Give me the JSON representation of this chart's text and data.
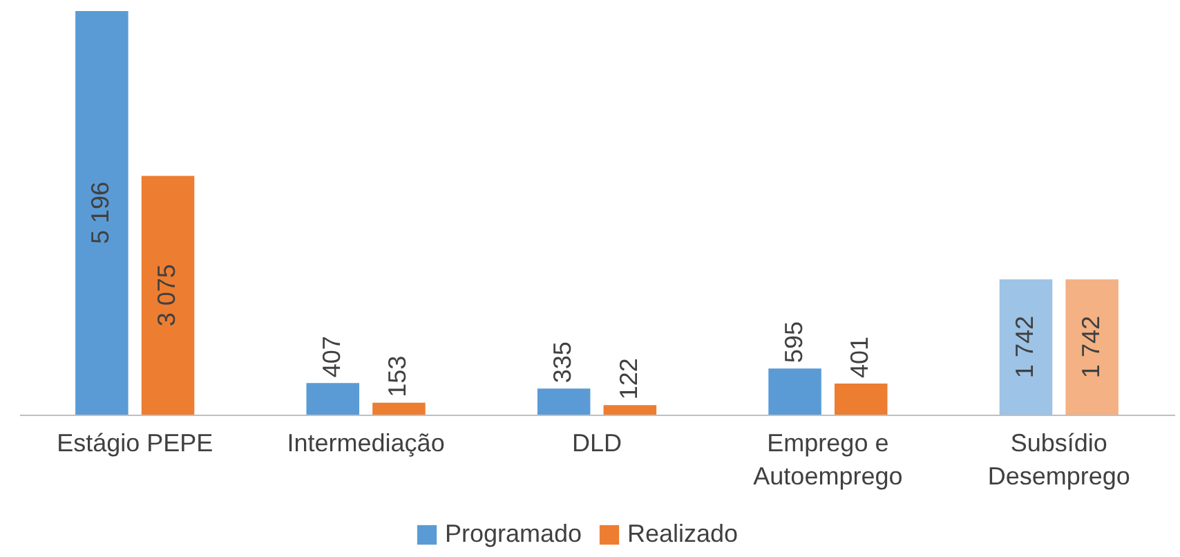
{
  "chart_data": {
    "type": "bar",
    "categories": [
      "Estágio PEPE",
      "Intermediação",
      "DLD",
      "Emprego e Autoemprego",
      "Subsídio Desemprego"
    ],
    "series": [
      {
        "name": "Programado",
        "color": "#5b9bd5",
        "colors": [
          "#5b9bd5",
          "#5b9bd5",
          "#5b9bd5",
          "#5b9bd5",
          "#9dc3e6"
        ],
        "values": [
          5196,
          407,
          335,
          595,
          1742
        ],
        "value_labels": [
          "5 196",
          "407",
          "335",
          "595",
          "1 742"
        ]
      },
      {
        "name": "Realizado",
        "color": "#ed7d31",
        "colors": [
          "#ed7d31",
          "#ed7d31",
          "#ed7d31",
          "#ed7d31",
          "#f4b183"
        ],
        "values": [
          3075,
          153,
          122,
          401,
          1742
        ],
        "value_labels": [
          "3 075",
          "153",
          "122",
          "401",
          "1 742"
        ]
      }
    ],
    "legend": "bottom",
    "grid": false
  }
}
